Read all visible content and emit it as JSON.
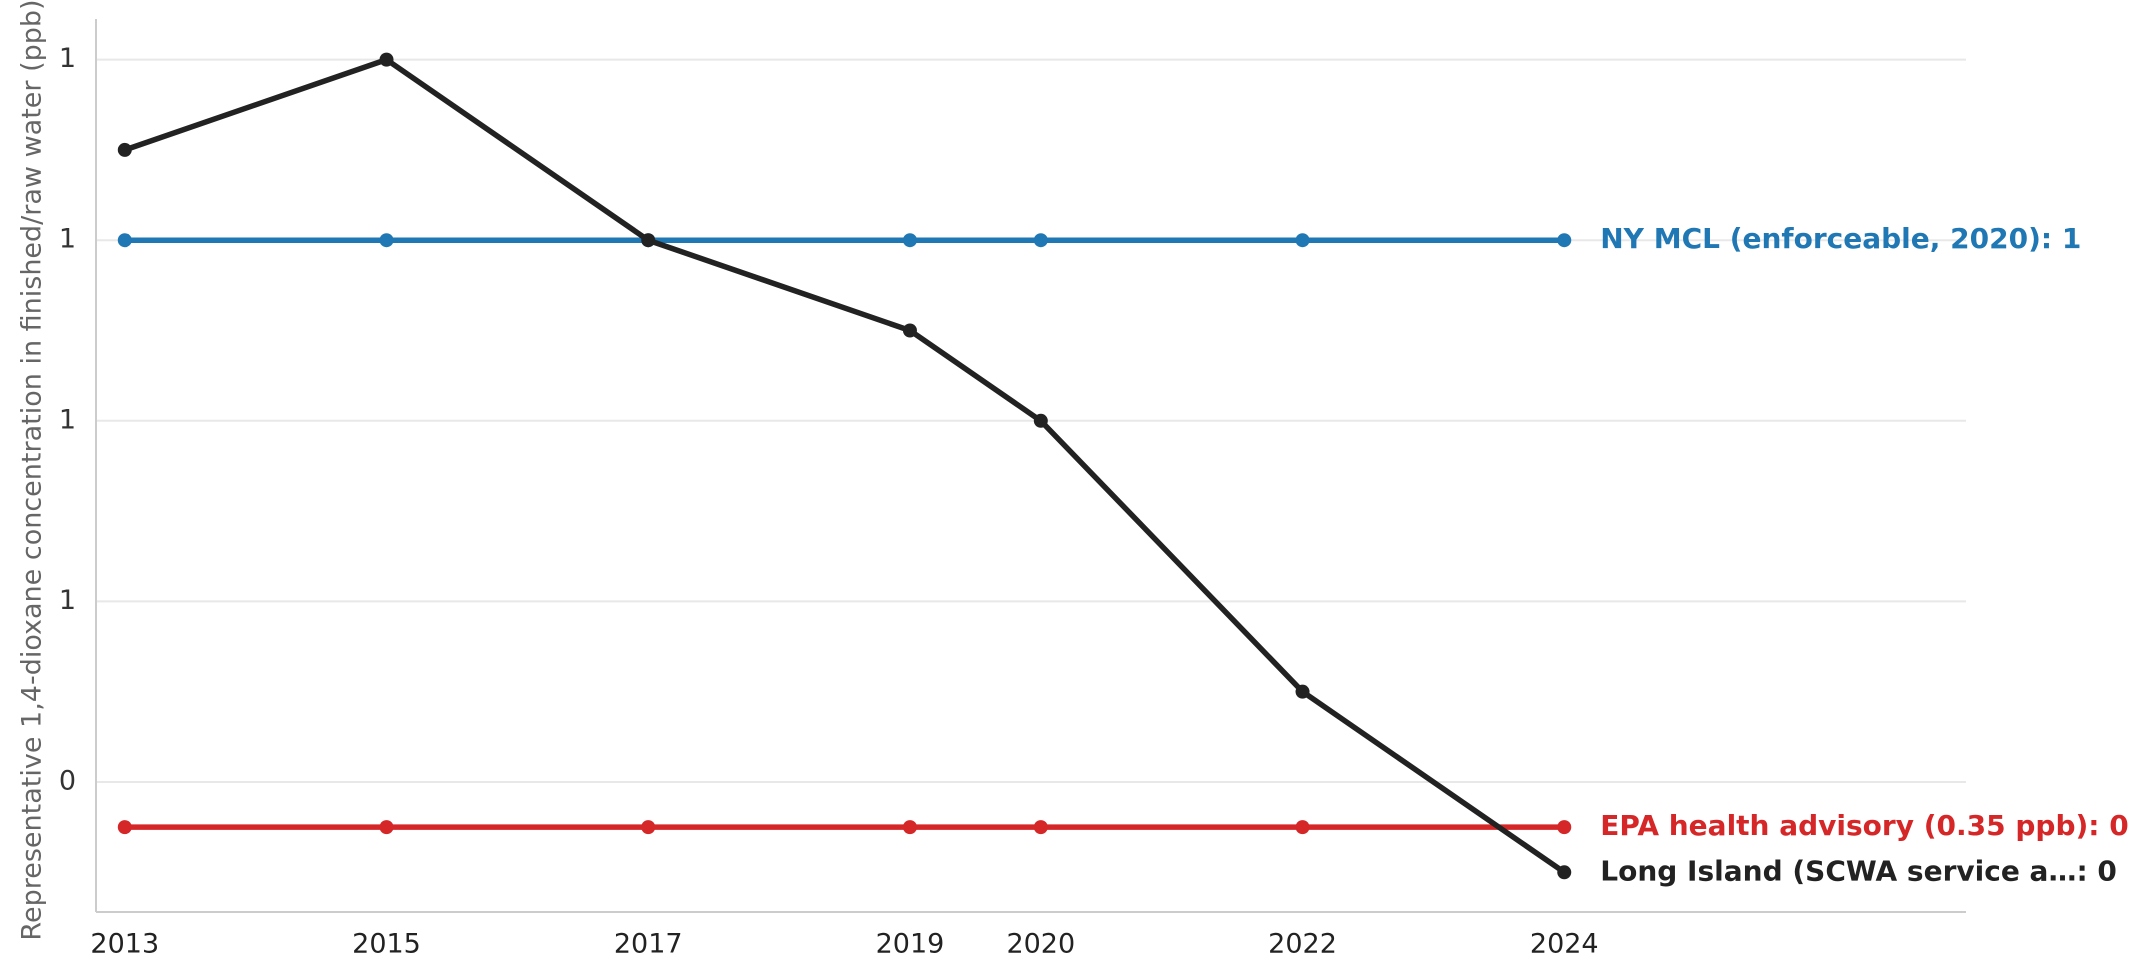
{
  "chart_data": {
    "type": "line",
    "ylabel": "Representative 1,4-dioxane concentration in finished/raw water (ppb)",
    "x": [
      2013,
      2015,
      2017,
      2019,
      2020,
      2022,
      2024
    ],
    "xlim": [
      2012.78,
      2027.07
    ],
    "xticks": [
      2013,
      2015,
      2017,
      2019,
      2020,
      2022,
      2024
    ],
    "ylim": [
      0.256,
      1.245
    ],
    "yticks": [
      {
        "value": 0.4,
        "label": "0"
      },
      {
        "value": 0.6,
        "label": "1"
      },
      {
        "value": 0.8,
        "label": "1"
      },
      1,
      {
        "value": 1.2,
        "label": "1"
      }
    ],
    "grid": true,
    "series": [
      {
        "end_label": "EPA health advisory (0.35 ppb): 0",
        "color": "#d62728",
        "values": [
          0.35,
          0.35,
          0.35,
          0.35,
          0.35,
          0.35,
          0.35
        ]
      },
      {
        "end_label": "NY MCL (enforceable, 2020): 1",
        "color": "#1f77b4",
        "values": [
          1,
          1,
          1,
          1,
          1,
          1,
          1
        ]
      },
      {
        "end_label": "Long Island (SCWA service a…: 0",
        "color": "#222222",
        "values": [
          1.1,
          1.2,
          1.0,
          0.9,
          0.8,
          0.5,
          0.3
        ]
      }
    ]
  }
}
